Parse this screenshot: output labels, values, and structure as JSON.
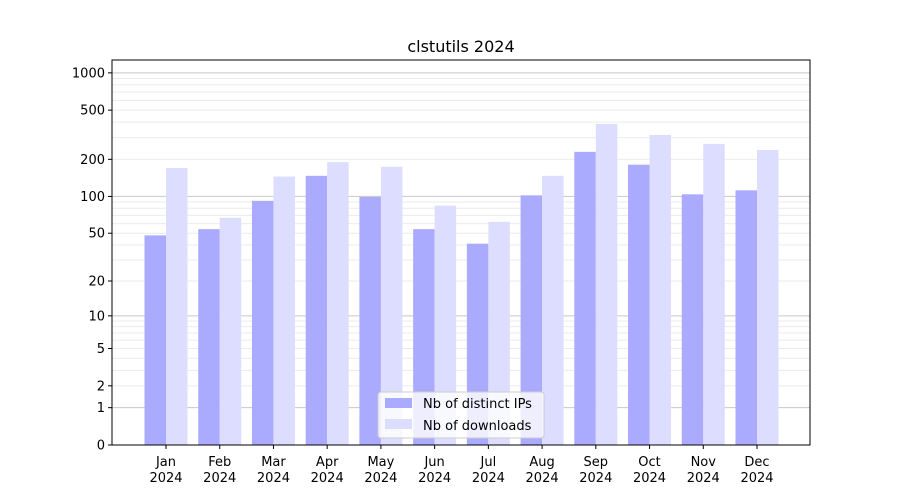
{
  "chart_data": {
    "type": "bar",
    "title": "clstutils 2024",
    "xlabel": "",
    "ylabel": "",
    "yscale": "log(1+y)",
    "ylim": [
      0,
      1270
    ],
    "yticks": [
      0,
      1,
      2,
      5,
      10,
      20,
      50,
      100,
      200,
      500,
      1000
    ],
    "grid": true,
    "legend_position": "bottom-center",
    "categories": [
      "Jan\n2024",
      "Feb\n2024",
      "Mar\n2024",
      "Apr\n2024",
      "May\n2024",
      "Jun\n2024",
      "Jul\n2024",
      "Aug\n2024",
      "Sep\n2024",
      "Oct\n2024",
      "Nov\n2024",
      "Dec\n2024"
    ],
    "series": [
      {
        "name": "Nb of distinct IPs",
        "color": "#aaaaff",
        "values": [
          48,
          54,
          92,
          147,
          99,
          54,
          41,
          102,
          230,
          181,
          104,
          112
        ]
      },
      {
        "name": "Nb of downloads",
        "color": "#ddddff",
        "values": [
          170,
          67,
          145,
          190,
          174,
          84,
          62,
          147,
          387,
          315,
          267,
          238
        ]
      }
    ]
  }
}
